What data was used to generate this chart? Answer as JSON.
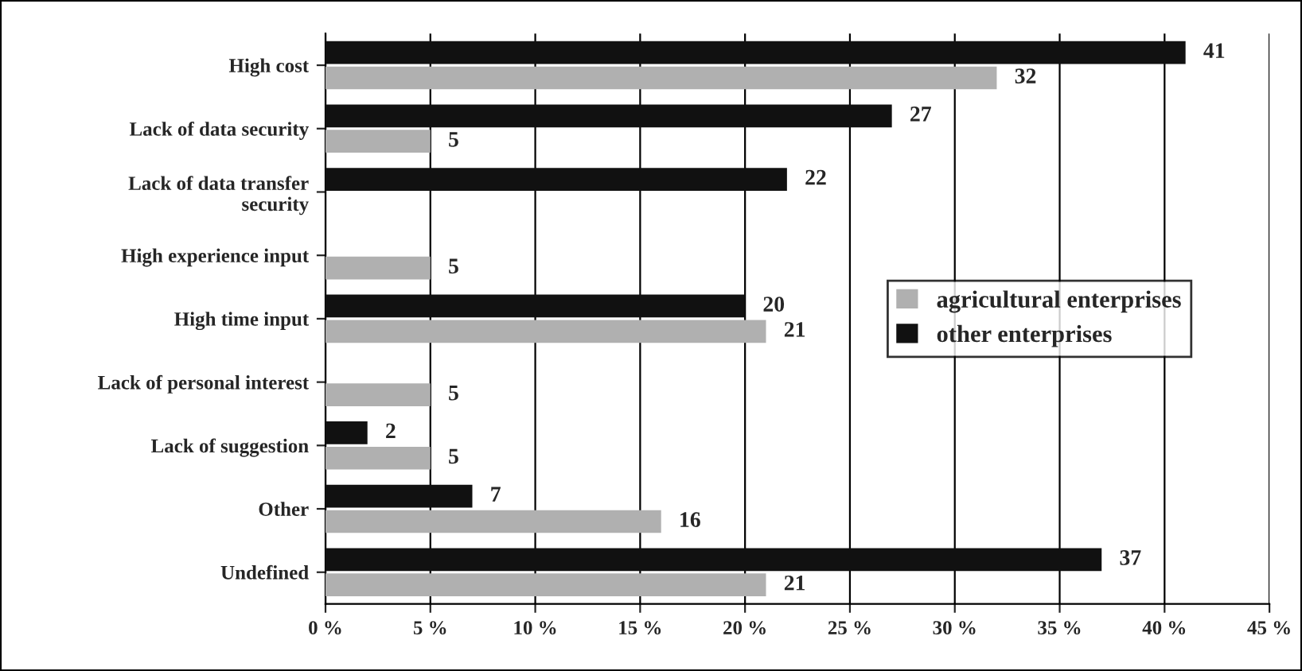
{
  "chart_data": {
    "type": "bar",
    "orientation": "horizontal",
    "categories": [
      "High cost",
      "Lack of data security",
      "Lack of data transfer\nsecurity",
      "High experience input",
      "High time input",
      "Lack of personal interest",
      "Lack of suggestion",
      "Other",
      "Undefined"
    ],
    "series": [
      {
        "name": "agricultural enterprises",
        "color": "#b0b0b0",
        "values": [
          32,
          5,
          0,
          5,
          21,
          5,
          5,
          16,
          21
        ],
        "value_labels": [
          "32",
          "5",
          null,
          "5",
          "21",
          "5",
          "5",
          "16",
          "21"
        ]
      },
      {
        "name": "other enterprises",
        "color": "#111111",
        "values": [
          41,
          27,
          22,
          0,
          20,
          0,
          2,
          7,
          37
        ],
        "value_labels": [
          "41",
          "27",
          "22",
          null,
          "20",
          null,
          "2",
          "7",
          "37"
        ]
      }
    ],
    "xlim": [
      0,
      45
    ],
    "xticks": [
      {
        "value": 0,
        "label": "0 %"
      },
      {
        "value": 5,
        "label": "5 %"
      },
      {
        "value": 10,
        "label": "10 %"
      },
      {
        "value": 15,
        "label": "15 %"
      },
      {
        "value": 20,
        "label": "20 %"
      },
      {
        "value": 25,
        "label": "25 %"
      },
      {
        "value": 30,
        "label": "30 %"
      },
      {
        "value": 35,
        "label": "35 %"
      },
      {
        "value": 40,
        "label": "40 %"
      },
      {
        "value": 45,
        "label": "45 %"
      }
    ],
    "grid": "x",
    "legend": "right"
  }
}
